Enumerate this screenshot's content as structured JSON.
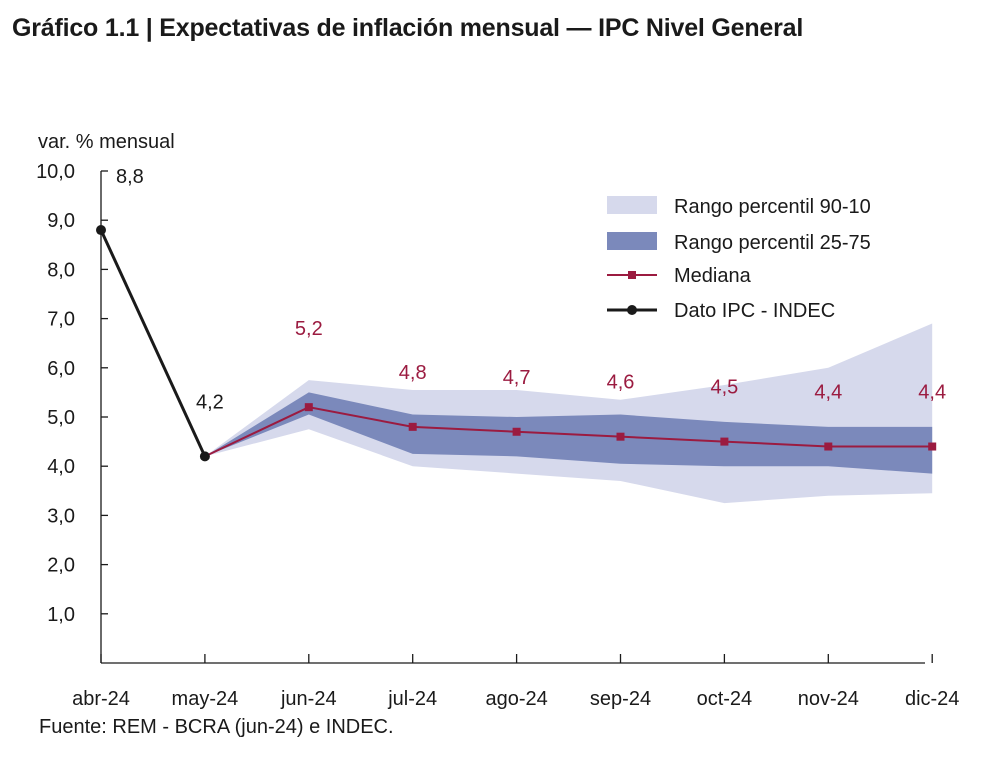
{
  "title": "Gráfico 1.1 | Expectativas de inflación mensual — IPC Nivel General",
  "source": "Fuente: REM - BCRA (jun-24) e INDEC.",
  "chart_data": {
    "type": "line",
    "ylabel": "var. % mensual",
    "ylim": [
      0,
      10
    ],
    "yticks": [
      "1,0",
      "2,0",
      "3,0",
      "4,0",
      "5,0",
      "6,0",
      "7,0",
      "8,0",
      "9,0",
      "10,0"
    ],
    "categories": [
      "abr-24",
      "may-24",
      "jun-24",
      "jul-24",
      "ago-24",
      "sep-24",
      "oct-24",
      "nov-24",
      "dic-24"
    ],
    "colors": {
      "band_90_10": "#d6d9ec",
      "band_25_75": "#7b89bb",
      "median": "#9b1b40",
      "ipc": "#1a1a1a"
    },
    "series": [
      {
        "name": "Rango percentil 90-10",
        "kind": "band",
        "x": [
          "may-24",
          "jun-24",
          "jul-24",
          "ago-24",
          "sep-24",
          "oct-24",
          "nov-24",
          "dic-24"
        ],
        "low": [
          4.2,
          4.75,
          4.0,
          3.85,
          3.7,
          3.25,
          3.4,
          3.45
        ],
        "high": [
          4.2,
          5.75,
          5.55,
          5.55,
          5.35,
          5.65,
          6.0,
          6.9
        ]
      },
      {
        "name": "Rango percentil 25-75",
        "kind": "band",
        "x": [
          "may-24",
          "jun-24",
          "jul-24",
          "ago-24",
          "sep-24",
          "oct-24",
          "nov-24",
          "dic-24"
        ],
        "low": [
          4.2,
          5.05,
          4.25,
          4.2,
          4.05,
          4.0,
          4.0,
          3.85
        ],
        "high": [
          4.2,
          5.5,
          5.05,
          5.0,
          5.05,
          4.9,
          4.8,
          4.8
        ]
      },
      {
        "name": "Mediana",
        "kind": "line",
        "x": [
          "may-24",
          "jun-24",
          "jul-24",
          "ago-24",
          "sep-24",
          "oct-24",
          "nov-24",
          "dic-24"
        ],
        "values": [
          4.2,
          5.2,
          4.8,
          4.7,
          4.6,
          4.5,
          4.4,
          4.4
        ],
        "labels": [
          null,
          "5,2",
          "4,8",
          "4,7",
          "4,6",
          "4,5",
          "4,4",
          "4,4"
        ]
      },
      {
        "name": "Dato IPC - INDEC",
        "kind": "line",
        "x": [
          "abr-24",
          "may-24"
        ],
        "values": [
          8.8,
          4.2
        ],
        "labels": [
          "8,8",
          "4,2"
        ]
      }
    ],
    "legend": {
      "position": "top-right",
      "items": [
        "Rango percentil 90-10",
        "Rango percentil 25-75",
        "Mediana",
        "Dato IPC - INDEC"
      ]
    }
  }
}
